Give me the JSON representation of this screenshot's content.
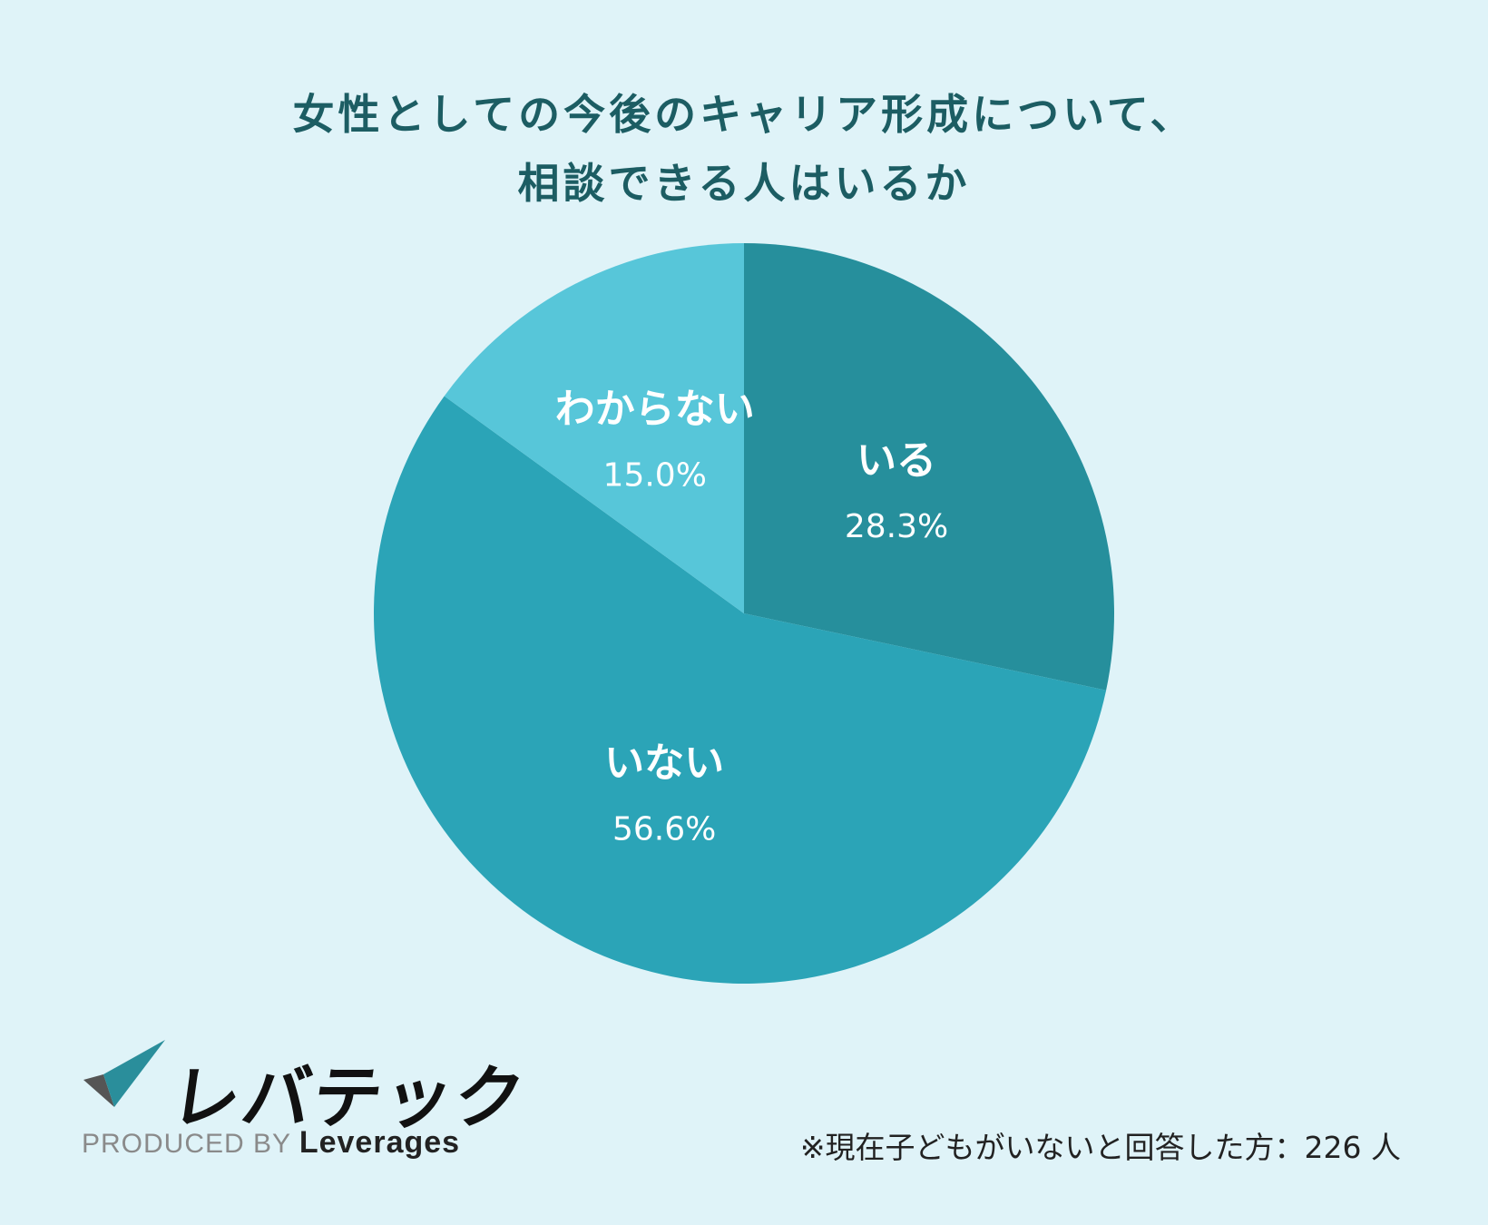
{
  "title": {
    "line1": "女性としての今後のキャリア形成について、",
    "line2": "相談できる人はいるか"
  },
  "chart_data": {
    "type": "pie",
    "slices": [
      {
        "label": "いる",
        "value": 28.3,
        "pct_label": "28.3%",
        "color": "#268f9c"
      },
      {
        "label": "いない",
        "value": 56.6,
        "pct_label": "56.6%",
        "color": "#2ba4b7"
      },
      {
        "label": "わからない",
        "value": 15.0,
        "pct_label": "15.0%",
        "color": "#57c6d9"
      }
    ]
  },
  "logo": {
    "wordmark": "レバテック",
    "produced_prefix": "PRODUCED BY",
    "produced_brand": "Leverages"
  },
  "note": "※現在子どもがいないと回答した方：226 人"
}
